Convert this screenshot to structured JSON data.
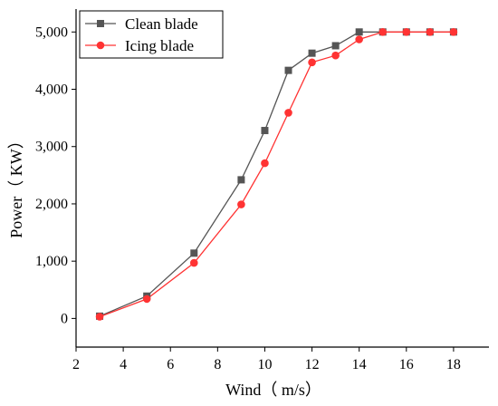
{
  "chart_data": {
    "type": "line",
    "title": "",
    "xlabel": "Wind（ m/s）",
    "ylabel": "Power（ KW）",
    "xlim": [
      2,
      19.5
    ],
    "ylim": [
      -500,
      5400
    ],
    "xticks": [
      2,
      4,
      6,
      8,
      10,
      12,
      14,
      16,
      18
    ],
    "yticks": [
      0,
      1000,
      2000,
      3000,
      4000,
      5000
    ],
    "ytick_labels": [
      "0",
      "1,000",
      "2,000",
      "3,000",
      "4,000",
      "5,000"
    ],
    "grid": false,
    "legend_position": "top-left",
    "series": [
      {
        "name": "Clean blade",
        "color": "#555555",
        "marker": "square",
        "x": [
          3,
          5,
          7,
          9,
          10,
          11,
          12,
          13,
          14,
          15,
          16,
          17,
          18
        ],
        "y": [
          40,
          390,
          1140,
          2420,
          3280,
          4330,
          4630,
          4760,
          5000,
          5000,
          5000,
          5000,
          5000
        ]
      },
      {
        "name": "Icing blade",
        "color": "#ff3333",
        "marker": "circle",
        "x": [
          3,
          5,
          7,
          9,
          10,
          11,
          12,
          13,
          14,
          15,
          16,
          17,
          18
        ],
        "y": [
          30,
          340,
          970,
          1990,
          2710,
          3590,
          4470,
          4590,
          4870,
          5000,
          5000,
          5000,
          5000
        ]
      }
    ]
  }
}
